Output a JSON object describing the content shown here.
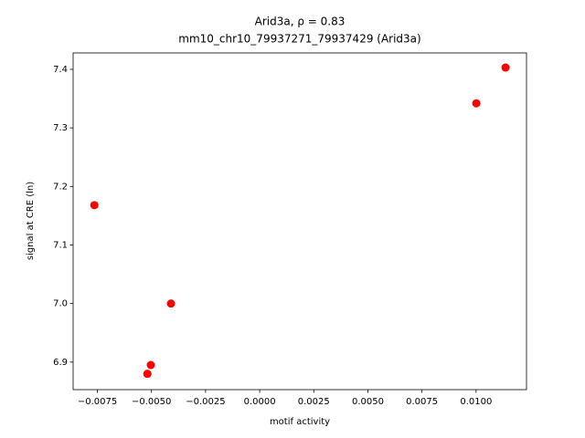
{
  "chart_data": {
    "type": "scatter",
    "title": "Arid3a, ρ = 0.83",
    "subtitle": "mm10_chr10_79937271_79937429 (Arid3a)",
    "x_label": "motif activity",
    "y_label": "signal at CRE (ln)",
    "color": "#ff0000",
    "x": [
      0.01136,
      0.01001,
      -0.00764,
      -0.0041,
      -0.00503,
      -0.00519
    ],
    "values": [
      7.403,
      7.342,
      7.168,
      7.0,
      6.895,
      6.88
    ],
    "xlim": [
      -0.00862,
      0.01233
    ],
    "ylim": [
      6.853,
      7.428
    ],
    "xticks": [
      {
        "value": -0.0075,
        "label": "−0.0075"
      },
      {
        "value": -0.005,
        "label": "−0.0050"
      },
      {
        "value": -0.0025,
        "label": "−0.0025"
      },
      {
        "value": 0,
        "label": "0.0000"
      },
      {
        "value": 0.0025,
        "label": "0.0025"
      },
      {
        "value": 0.005,
        "label": "0.0050"
      },
      {
        "value": 0.0075,
        "label": "0.0075"
      },
      {
        "value": 0.01,
        "label": "0.0100"
      }
    ],
    "yticks": [
      6.9,
      {
        "value": 7,
        "label": "7.0"
      },
      7.1,
      7.2,
      7.3,
      7.4
    ]
  }
}
